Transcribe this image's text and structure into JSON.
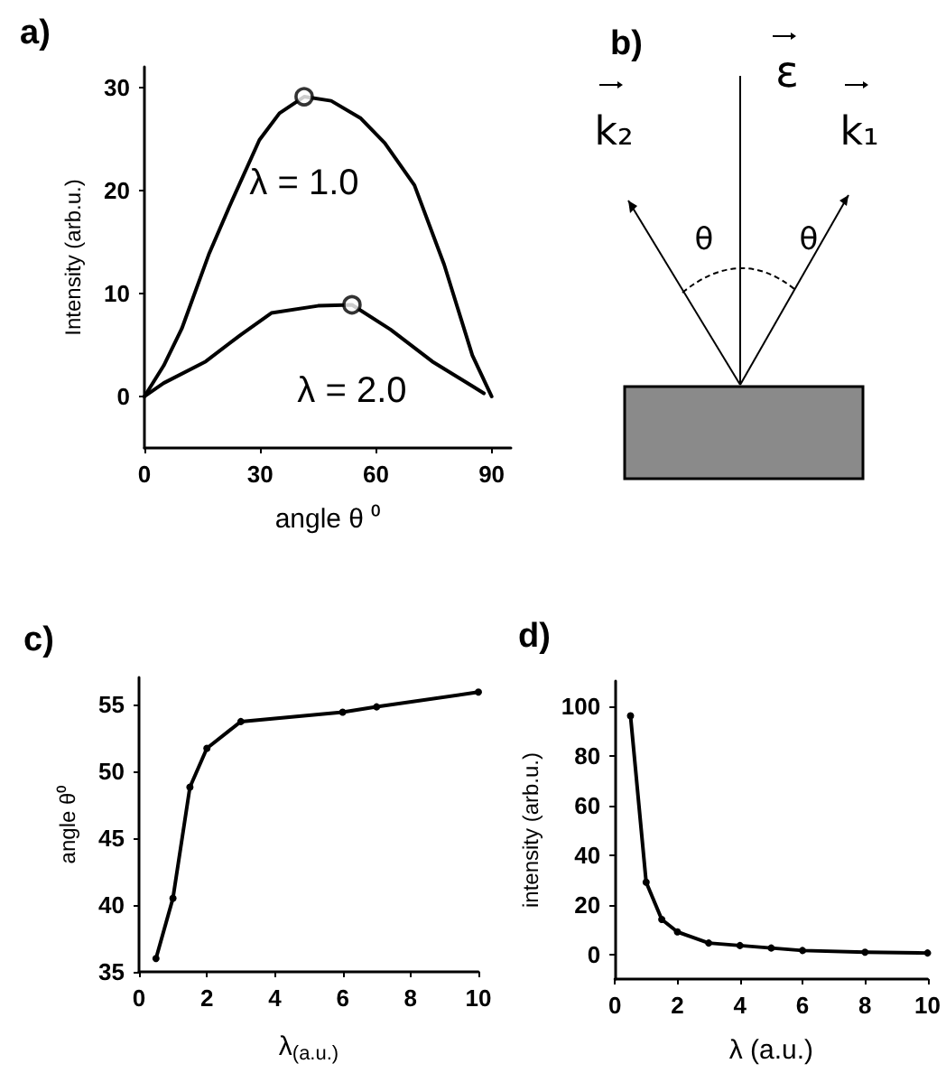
{
  "chart_data": [
    {
      "type": "line",
      "title": "a)",
      "xlabel": "angle θ ⁰",
      "ylabel": "Intensity (arb.u.)",
      "xlim": [
        0,
        95
      ],
      "ylim": [
        -5,
        32
      ],
      "xticks": [
        0,
        30,
        60,
        90
      ],
      "yticks": [
        0,
        10,
        20,
        30
      ],
      "marker": "none",
      "line_style": "solid",
      "series": [
        {
          "name": "λ = 1.0",
          "color": "#000000",
          "x": [
            0,
            5,
            9.7,
            16.7,
            22.1,
            29.8,
            35,
            41.4,
            48.4,
            56.1,
            62.3,
            70,
            77.7,
            85,
            90
          ],
          "values": [
            0,
            3,
            6.6,
            13.8,
            18.5,
            24.9,
            27.5,
            29.1,
            28.7,
            27,
            24.6,
            20.5,
            12.8,
            4,
            0
          ]
        },
        {
          "name": "λ = 2.0",
          "color": "#000000",
          "x": [
            0,
            5,
            15.9,
            25,
            32.9,
            45,
            53.8,
            63.8,
            74.6,
            85,
            88
          ],
          "values": [
            0,
            1.3,
            3.4,
            6,
            8.1,
            8.8,
            8.9,
            6.5,
            3.4,
            1,
            0.3
          ]
        },
        {
          "type": "scatter",
          "marker": "circle",
          "color": "#000000",
          "x": [
            41.4
          ],
          "values": [
            29.1
          ]
        },
        {
          "type": "scatter",
          "marker": "circle",
          "color": "#000000",
          "x": [
            53.8
          ],
          "values": [
            8.9
          ]
        }
      ]
    },
    {
      "type": "other",
      "title": "b)",
      "annotations": [
        "ε",
        "k₂",
        "k₁",
        "θ",
        "θ"
      ]
    },
    {
      "type": "line",
      "title": "c)",
      "xlabel": "λ$_{(a.u.)}$",
      "ylabel": "angle θ⁰",
      "xlim": [
        0,
        10
      ],
      "ylim": [
        35,
        57
      ],
      "xticks": [
        0,
        2,
        4,
        6,
        8,
        10
      ],
      "yticks": [
        35,
        40,
        45,
        50,
        55
      ],
      "marker": "circle",
      "line_style": "solid",
      "series": [
        {
          "color": "#000000",
          "x": [
            0.5,
            1,
            1.5,
            2,
            3,
            6,
            7,
            10
          ],
          "values": [
            36,
            40.5,
            48.8,
            51.7,
            53.7,
            54.4,
            54.8,
            55.9
          ]
        }
      ]
    },
    {
      "type": "line",
      "title": "d)",
      "xlabel": "λ (a.u.)",
      "ylabel": "intensity (arb.u.)",
      "xlim": [
        0,
        10
      ],
      "ylim": [
        -10,
        110
      ],
      "xticks": [
        0,
        2,
        4,
        6,
        8,
        10
      ],
      "yticks": [
        0,
        20,
        40,
        60,
        80,
        100
      ],
      "marker": "circle",
      "line_style": "solid",
      "series": [
        {
          "color": "#000000",
          "x": [
            0.5,
            1,
            1.5,
            2,
            3,
            4,
            5,
            6,
            8,
            10
          ],
          "values": [
            96,
            29,
            14,
            9,
            4.5,
            3.5,
            2.5,
            1.5,
            0.8,
            0.5
          ]
        }
      ]
    }
  ]
}
